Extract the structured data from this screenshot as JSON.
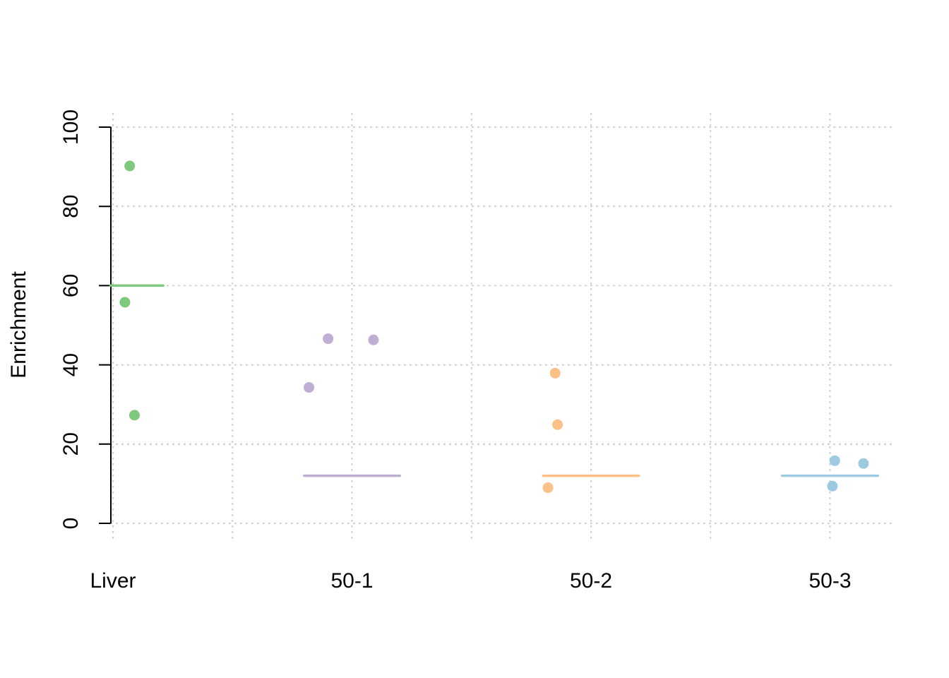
{
  "chart_data": {
    "type": "scatter",
    "title": "",
    "xlabel": "",
    "ylabel": "Enrichment",
    "ylim": [
      0,
      100
    ],
    "yticks": [
      0,
      20,
      40,
      60,
      80,
      100
    ],
    "grid": true,
    "legend": "none",
    "categories": [
      "Liver",
      "50-1",
      "50-2",
      "50-3"
    ],
    "series": [
      {
        "category": "Liver",
        "color": "#7fc97f",
        "points": [
          {
            "x": 1.07,
            "y": 90.2
          },
          {
            "x": 1.05,
            "y": 55.8
          },
          {
            "x": 1.09,
            "y": 27.3
          }
        ],
        "reference_line": 60
      },
      {
        "category": "50-1",
        "color": "#beaed4",
        "points": [
          {
            "x": 1.82,
            "y": 34.3
          },
          {
            "x": 1.9,
            "y": 46.6
          },
          {
            "x": 2.09,
            "y": 46.3
          }
        ],
        "reference_line": 12
      },
      {
        "category": "50-2",
        "color": "#fdc086",
        "points": [
          {
            "x": 2.82,
            "y": 9.0
          },
          {
            "x": 2.85,
            "y": 37.9
          },
          {
            "x": 2.86,
            "y": 24.9
          }
        ],
        "reference_line": 12
      },
      {
        "category": "50-3",
        "color": "#9ecae1",
        "points": [
          {
            "x": 4.01,
            "y": 9.4
          },
          {
            "x": 4.02,
            "y": 15.8
          },
          {
            "x": 4.14,
            "y": 15.1
          }
        ],
        "reference_line": 12
      }
    ]
  }
}
